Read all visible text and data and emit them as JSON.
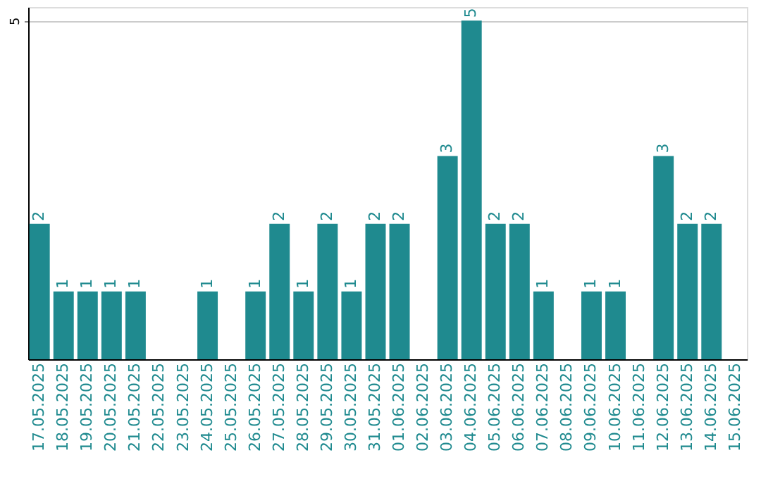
{
  "chart_data": {
    "type": "bar",
    "categories": [
      "17.05.2025",
      "18.05.2025",
      "19.05.2025",
      "20.05.2025",
      "21.05.2025",
      "22.05.2025",
      "23.05.2025",
      "24.05.2025",
      "25.05.2025",
      "26.05.2025",
      "27.05.2025",
      "28.05.2025",
      "29.05.2025",
      "30.05.2025",
      "31.05.2025",
      "01.06.2025",
      "02.06.2025",
      "03.06.2025",
      "04.06.2025",
      "05.06.2025",
      "06.06.2025",
      "07.06.2025",
      "08.06.2025",
      "09.06.2025",
      "10.06.2025",
      "11.06.2025",
      "12.06.2025",
      "13.06.2025",
      "14.06.2025",
      "15.06.2025"
    ],
    "values": [
      2,
      1,
      1,
      1,
      1,
      0,
      0,
      1,
      0,
      1,
      2,
      1,
      2,
      1,
      2,
      2,
      0,
      3,
      5,
      2,
      2,
      1,
      0,
      1,
      1,
      0,
      3,
      2,
      2,
      0
    ],
    "value_labels": [
      "2",
      "1",
      "1",
      "1",
      "1",
      null,
      null,
      "1",
      null,
      "1",
      "2",
      "1",
      "2",
      "1",
      "2",
      "2",
      null,
      "3",
      "5",
      "2",
      "2",
      "1",
      null,
      "1",
      "1",
      null,
      "3",
      "2",
      "2",
      null
    ],
    "color": "#1f8a8f",
    "ylim": [
      0,
      5.2
    ],
    "yticks": [
      5
    ],
    "grid": "y"
  }
}
